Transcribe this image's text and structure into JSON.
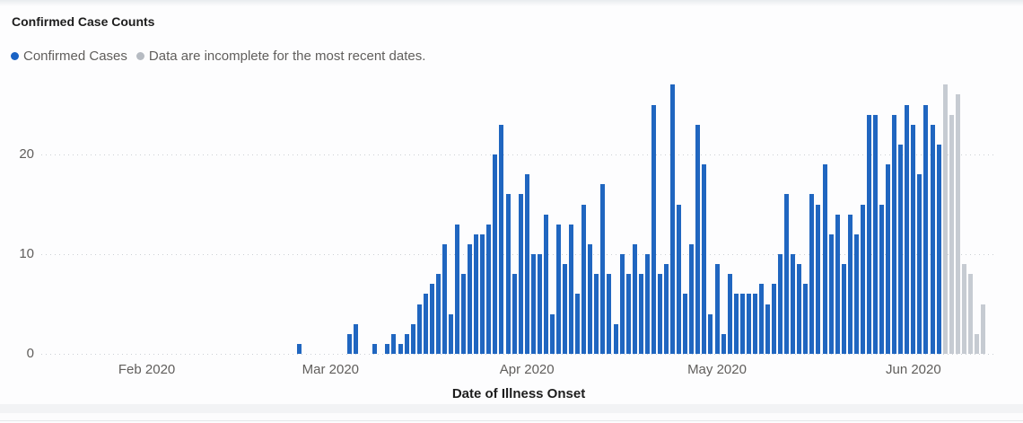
{
  "title": "Confirmed Case Counts",
  "colors": {
    "confirmed": "#2066c0",
    "incomplete": "#c6cbd2",
    "legend_confirmed_dot": "#1a63c5",
    "legend_incomplete_dot": "#b6bbc2"
  },
  "legend": [
    {
      "label": "Confirmed Cases"
    },
    {
      "label": "Data are incomplete for the most recent dates."
    }
  ],
  "chart_data": {
    "type": "bar",
    "title": "Confirmed Case Counts",
    "xlabel": "Date of Illness Onset",
    "ylabel": "",
    "ylim": [
      0,
      28
    ],
    "yticks": [
      0,
      10,
      20
    ],
    "grid": "dotted horizontal",
    "legend_position": "top-left",
    "x_ticks": [
      {
        "label": "Feb 2020",
        "date": "2020-02-01"
      },
      {
        "label": "Mar 2020",
        "date": "2020-03-01"
      },
      {
        "label": "Apr 2020",
        "date": "2020-04-01"
      },
      {
        "label": "May 2020",
        "date": "2020-05-01"
      },
      {
        "label": "Jun 2020",
        "date": "2020-06-01"
      }
    ],
    "series": [
      {
        "name": "Confirmed Cases",
        "color_key": "confirmed"
      },
      {
        "name": "Data are incomplete for the most recent dates.",
        "color_key": "incomplete"
      }
    ],
    "points": [
      {
        "date": "2020-02-25",
        "value": 1,
        "incomplete": false
      },
      {
        "date": "2020-03-04",
        "value": 2,
        "incomplete": false
      },
      {
        "date": "2020-03-05",
        "value": 3,
        "incomplete": false
      },
      {
        "date": "2020-03-08",
        "value": 1,
        "incomplete": false
      },
      {
        "date": "2020-03-10",
        "value": 1,
        "incomplete": false
      },
      {
        "date": "2020-03-11",
        "value": 2,
        "incomplete": false
      },
      {
        "date": "2020-03-12",
        "value": 1,
        "incomplete": false
      },
      {
        "date": "2020-03-13",
        "value": 2,
        "incomplete": false
      },
      {
        "date": "2020-03-14",
        "value": 3,
        "incomplete": false
      },
      {
        "date": "2020-03-15",
        "value": 5,
        "incomplete": false
      },
      {
        "date": "2020-03-16",
        "value": 6,
        "incomplete": false
      },
      {
        "date": "2020-03-17",
        "value": 7,
        "incomplete": false
      },
      {
        "date": "2020-03-18",
        "value": 8,
        "incomplete": false
      },
      {
        "date": "2020-03-19",
        "value": 11,
        "incomplete": false
      },
      {
        "date": "2020-03-20",
        "value": 4,
        "incomplete": false
      },
      {
        "date": "2020-03-21",
        "value": 13,
        "incomplete": false
      },
      {
        "date": "2020-03-22",
        "value": 8,
        "incomplete": false
      },
      {
        "date": "2020-03-23",
        "value": 11,
        "incomplete": false
      },
      {
        "date": "2020-03-24",
        "value": 12,
        "incomplete": false
      },
      {
        "date": "2020-03-25",
        "value": 12,
        "incomplete": false
      },
      {
        "date": "2020-03-26",
        "value": 13,
        "incomplete": false
      },
      {
        "date": "2020-03-27",
        "value": 20,
        "incomplete": false
      },
      {
        "date": "2020-03-28",
        "value": 23,
        "incomplete": false
      },
      {
        "date": "2020-03-29",
        "value": 16,
        "incomplete": false
      },
      {
        "date": "2020-03-30",
        "value": 8,
        "incomplete": false
      },
      {
        "date": "2020-03-31",
        "value": 16,
        "incomplete": false
      },
      {
        "date": "2020-04-01",
        "value": 18,
        "incomplete": false
      },
      {
        "date": "2020-04-02",
        "value": 10,
        "incomplete": false
      },
      {
        "date": "2020-04-03",
        "value": 10,
        "incomplete": false
      },
      {
        "date": "2020-04-04",
        "value": 14,
        "incomplete": false
      },
      {
        "date": "2020-04-05",
        "value": 4,
        "incomplete": false
      },
      {
        "date": "2020-04-06",
        "value": 13,
        "incomplete": false
      },
      {
        "date": "2020-04-07",
        "value": 9,
        "incomplete": false
      },
      {
        "date": "2020-04-08",
        "value": 13,
        "incomplete": false
      },
      {
        "date": "2020-04-09",
        "value": 6,
        "incomplete": false
      },
      {
        "date": "2020-04-10",
        "value": 15,
        "incomplete": false
      },
      {
        "date": "2020-04-11",
        "value": 11,
        "incomplete": false
      },
      {
        "date": "2020-04-12",
        "value": 8,
        "incomplete": false
      },
      {
        "date": "2020-04-13",
        "value": 17,
        "incomplete": false
      },
      {
        "date": "2020-04-14",
        "value": 8,
        "incomplete": false
      },
      {
        "date": "2020-04-15",
        "value": 3,
        "incomplete": false
      },
      {
        "date": "2020-04-16",
        "value": 10,
        "incomplete": false
      },
      {
        "date": "2020-04-17",
        "value": 8,
        "incomplete": false
      },
      {
        "date": "2020-04-18",
        "value": 11,
        "incomplete": false
      },
      {
        "date": "2020-04-19",
        "value": 8,
        "incomplete": false
      },
      {
        "date": "2020-04-20",
        "value": 10,
        "incomplete": false
      },
      {
        "date": "2020-04-21",
        "value": 25,
        "incomplete": false
      },
      {
        "date": "2020-04-22",
        "value": 8,
        "incomplete": false
      },
      {
        "date": "2020-04-23",
        "value": 9,
        "incomplete": false
      },
      {
        "date": "2020-04-24",
        "value": 27,
        "incomplete": false
      },
      {
        "date": "2020-04-25",
        "value": 15,
        "incomplete": false
      },
      {
        "date": "2020-04-26",
        "value": 6,
        "incomplete": false
      },
      {
        "date": "2020-04-27",
        "value": 11,
        "incomplete": false
      },
      {
        "date": "2020-04-28",
        "value": 23,
        "incomplete": false
      },
      {
        "date": "2020-04-29",
        "value": 19,
        "incomplete": false
      },
      {
        "date": "2020-04-30",
        "value": 4,
        "incomplete": false
      },
      {
        "date": "2020-05-01",
        "value": 9,
        "incomplete": false
      },
      {
        "date": "2020-05-02",
        "value": 2,
        "incomplete": false
      },
      {
        "date": "2020-05-03",
        "value": 8,
        "incomplete": false
      },
      {
        "date": "2020-05-04",
        "value": 6,
        "incomplete": false
      },
      {
        "date": "2020-05-05",
        "value": 6,
        "incomplete": false
      },
      {
        "date": "2020-05-06",
        "value": 6,
        "incomplete": false
      },
      {
        "date": "2020-05-07",
        "value": 6,
        "incomplete": false
      },
      {
        "date": "2020-05-08",
        "value": 7,
        "incomplete": false
      },
      {
        "date": "2020-05-09",
        "value": 5,
        "incomplete": false
      },
      {
        "date": "2020-05-10",
        "value": 7,
        "incomplete": false
      },
      {
        "date": "2020-05-11",
        "value": 10,
        "incomplete": false
      },
      {
        "date": "2020-05-12",
        "value": 16,
        "incomplete": false
      },
      {
        "date": "2020-05-13",
        "value": 10,
        "incomplete": false
      },
      {
        "date": "2020-05-14",
        "value": 9,
        "incomplete": false
      },
      {
        "date": "2020-05-15",
        "value": 7,
        "incomplete": false
      },
      {
        "date": "2020-05-16",
        "value": 16,
        "incomplete": false
      },
      {
        "date": "2020-05-17",
        "value": 15,
        "incomplete": false
      },
      {
        "date": "2020-05-18",
        "value": 19,
        "incomplete": false
      },
      {
        "date": "2020-05-19",
        "value": 12,
        "incomplete": false
      },
      {
        "date": "2020-05-20",
        "value": 14,
        "incomplete": false
      },
      {
        "date": "2020-05-21",
        "value": 9,
        "incomplete": false
      },
      {
        "date": "2020-05-22",
        "value": 14,
        "incomplete": false
      },
      {
        "date": "2020-05-23",
        "value": 12,
        "incomplete": false
      },
      {
        "date": "2020-05-24",
        "value": 15,
        "incomplete": false
      },
      {
        "date": "2020-05-25",
        "value": 24,
        "incomplete": false
      },
      {
        "date": "2020-05-26",
        "value": 24,
        "incomplete": false
      },
      {
        "date": "2020-05-27",
        "value": 15,
        "incomplete": false
      },
      {
        "date": "2020-05-28",
        "value": 19,
        "incomplete": false
      },
      {
        "date": "2020-05-29",
        "value": 24,
        "incomplete": false
      },
      {
        "date": "2020-05-30",
        "value": 21,
        "incomplete": false
      },
      {
        "date": "2020-05-31",
        "value": 25,
        "incomplete": false
      },
      {
        "date": "2020-06-01",
        "value": 23,
        "incomplete": false
      },
      {
        "date": "2020-06-02",
        "value": 18,
        "incomplete": false
      },
      {
        "date": "2020-06-03",
        "value": 25,
        "incomplete": false
      },
      {
        "date": "2020-06-04",
        "value": 23,
        "incomplete": false
      },
      {
        "date": "2020-06-05",
        "value": 21,
        "incomplete": false
      },
      {
        "date": "2020-06-06",
        "value": 27,
        "incomplete": true
      },
      {
        "date": "2020-06-07",
        "value": 24,
        "incomplete": true
      },
      {
        "date": "2020-06-08",
        "value": 26,
        "incomplete": true
      },
      {
        "date": "2020-06-09",
        "value": 9,
        "incomplete": true
      },
      {
        "date": "2020-06-10",
        "value": 8,
        "incomplete": true
      },
      {
        "date": "2020-06-11",
        "value": 2,
        "incomplete": true
      },
      {
        "date": "2020-06-12",
        "value": 5,
        "incomplete": true
      }
    ]
  }
}
